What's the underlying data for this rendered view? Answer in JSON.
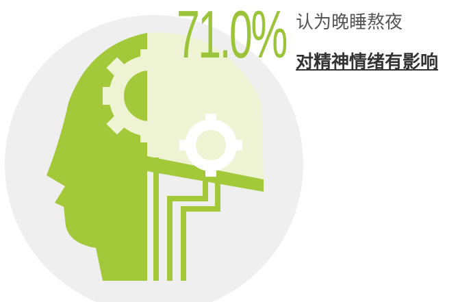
{
  "stat": "71.0%",
  "lines": [
    "认为晚睡熬夜",
    "对精神情绪有影响"
  ]
}
